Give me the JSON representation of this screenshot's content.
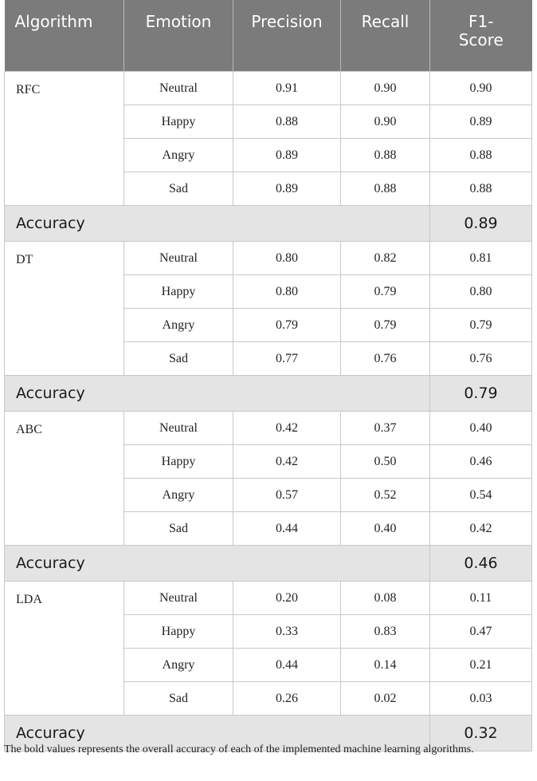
{
  "headers": [
    "Algorithm",
    "Emotion",
    "Precision",
    "Recall",
    "F1-\nScore"
  ],
  "accuracy_label": "Accuracy",
  "groups": [
    {
      "algorithm": "RFC",
      "accuracy": "0.89",
      "rows": [
        {
          "emotion": "Neutral",
          "precision": "0.91",
          "recall": "0.90",
          "f1": "0.90"
        },
        {
          "emotion": "Happy",
          "precision": "0.88",
          "recall": "0.90",
          "f1": "0.89"
        },
        {
          "emotion": "Angry",
          "precision": "0.89",
          "recall": "0.88",
          "f1": "0.88"
        },
        {
          "emotion": "Sad",
          "precision": "0.89",
          "recall": "0.88",
          "f1": "0.88"
        }
      ]
    },
    {
      "algorithm": "DT",
      "accuracy": "0.79",
      "rows": [
        {
          "emotion": "Neutral",
          "precision": "0.80",
          "recall": "0.82",
          "f1": "0.81"
        },
        {
          "emotion": "Happy",
          "precision": "0.80",
          "recall": "0.79",
          "f1": "0.80"
        },
        {
          "emotion": "Angry",
          "precision": "0.79",
          "recall": "0.79",
          "f1": "0.79"
        },
        {
          "emotion": "Sad",
          "precision": "0.77",
          "recall": "0.76",
          "f1": "0.76"
        }
      ]
    },
    {
      "algorithm": "ABC",
      "accuracy": "0.46",
      "rows": [
        {
          "emotion": "Neutral",
          "precision": "0.42",
          "recall": "0.37",
          "f1": "0.40"
        },
        {
          "emotion": "Happy",
          "precision": "0.42",
          "recall": "0.50",
          "f1": "0.46"
        },
        {
          "emotion": "Angry",
          "precision": "0.57",
          "recall": "0.52",
          "f1": "0.54"
        },
        {
          "emotion": "Sad",
          "precision": "0.44",
          "recall": "0.40",
          "f1": "0.42"
        }
      ]
    },
    {
      "algorithm": "LDA",
      "accuracy": "0.32",
      "rows": [
        {
          "emotion": "Neutral",
          "precision": "0.20",
          "recall": "0.08",
          "f1": "0.11"
        },
        {
          "emotion": "Happy",
          "precision": "0.33",
          "recall": "0.83",
          "f1": "0.47"
        },
        {
          "emotion": "Angry",
          "precision": "0.44",
          "recall": "0.14",
          "f1": "0.21"
        },
        {
          "emotion": "Sad",
          "precision": "0.26",
          "recall": "0.02",
          "f1": "0.03"
        }
      ]
    }
  ],
  "footnote": "The bold values represents the overall accuracy of each of the implemented machine learning algorithms."
}
